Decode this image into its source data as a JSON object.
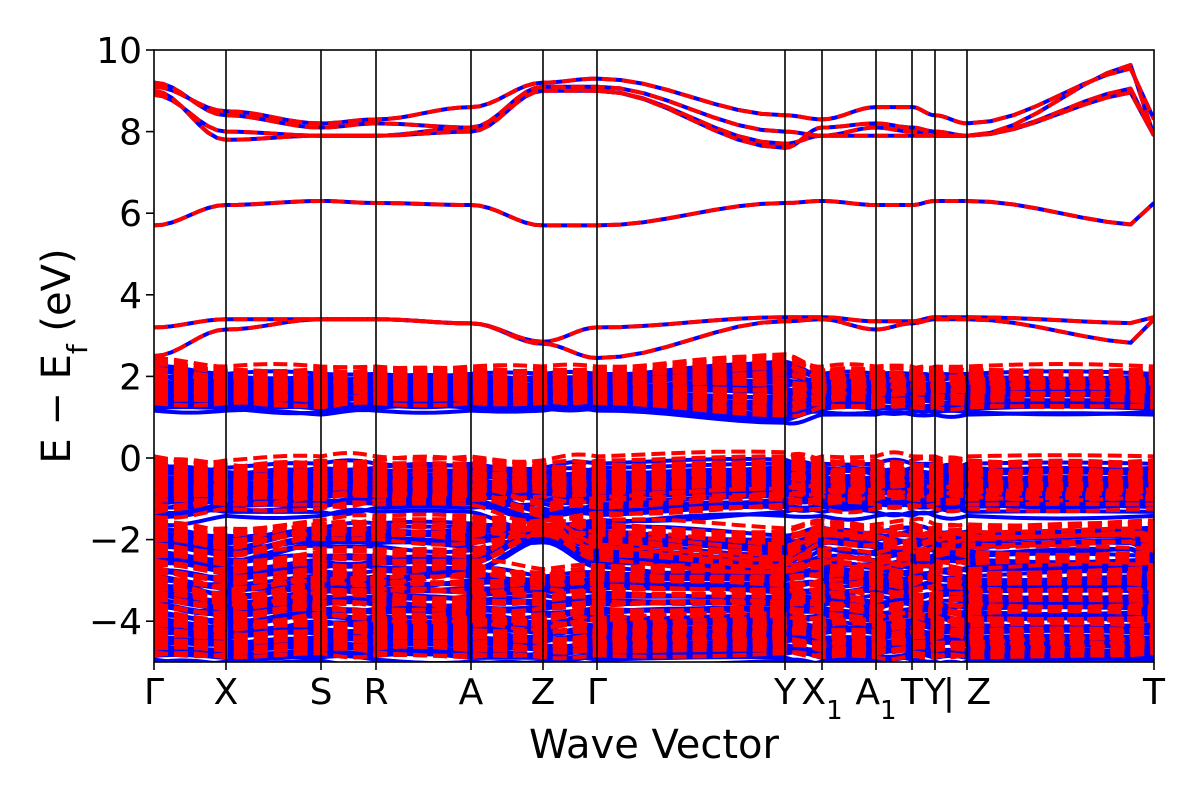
{
  "chart_data": {
    "type": "line",
    "title": "",
    "xlabel": "Wave Vector",
    "ylabel": "E − E_f (eV)",
    "ylabel_parts": {
      "main": "E − E",
      "sub": "f",
      "unit": " (eV)"
    },
    "ylim": [
      -5,
      10
    ],
    "y_ticks": [
      -4,
      -2,
      0,
      2,
      4,
      6,
      8,
      10
    ],
    "y_tick_labels": [
      "−4",
      "−2",
      "0",
      "2",
      "4",
      "6",
      "8",
      "10"
    ],
    "k_path": [
      {
        "pos": 0.0,
        "label": "Γ",
        "sub": ""
      },
      {
        "pos": 0.072,
        "label": "X",
        "sub": ""
      },
      {
        "pos": 0.167,
        "label": "S",
        "sub": ""
      },
      {
        "pos": 0.222,
        "label": "R",
        "sub": ""
      },
      {
        "pos": 0.317,
        "label": "A",
        "sub": ""
      },
      {
        "pos": 0.389,
        "label": "Z",
        "sub": ""
      },
      {
        "pos": 0.443,
        "label": "Γ",
        "sub": ""
      },
      {
        "pos": 0.631,
        "label": "Y",
        "sub": ""
      },
      {
        "pos": 0.668,
        "label": "X",
        "sub": "1"
      },
      {
        "pos": 0.722,
        "label": "A",
        "sub": "1"
      },
      {
        "pos": 0.758,
        "label": "T",
        "sub": ""
      },
      {
        "pos": 0.781,
        "label": "Y",
        "sub": ""
      },
      {
        "pos": 0.813,
        "label": "| Z",
        "sub": ""
      },
      {
        "pos": 1.0,
        "label": "T",
        "sub": ""
      }
    ],
    "series": [
      {
        "name": "Blue (solid)",
        "color": "#0000ff",
        "dash": "solid"
      },
      {
        "name": "Red (dashed)",
        "color": "#ff0000",
        "dash": "dashed"
      }
    ],
    "bands": [
      {
        "y": [
          9.1,
          8.5,
          8.2,
          8.3,
          8.6,
          9.2,
          9.3,
          8.4,
          8.3,
          8.6,
          8.6,
          8.4,
          8.2,
          9.6,
          8.3
        ],
        "h": 0
      },
      {
        "y": [
          9.2,
          8.4,
          8.1,
          8.2,
          8.1,
          9.1,
          9.0,
          7.6,
          8.1,
          8.2,
          8.1,
          8.0,
          7.9,
          9.7,
          7.9
        ],
        "h": 0
      },
      {
        "y": [
          8.9,
          8.0,
          7.9,
          7.9,
          8.1,
          9.1,
          9.1,
          8.0,
          7.9,
          8.1,
          8.0,
          7.9,
          7.9,
          9.0,
          7.9
        ],
        "h": 0
      },
      {
        "y": [
          9.0,
          7.8,
          7.9,
          7.9,
          8.0,
          9.0,
          9.0,
          7.7,
          7.9,
          7.9,
          7.9,
          7.9,
          7.9,
          9.1,
          7.9
        ],
        "h": 0
      },
      {
        "y": [
          5.7,
          6.2,
          6.3,
          6.25,
          6.2,
          5.7,
          5.7,
          6.25,
          6.3,
          6.2,
          6.2,
          6.3,
          6.3,
          5.7,
          6.25
        ],
        "h": 0
      },
      {
        "y": [
          3.2,
          3.4,
          3.4,
          3.4,
          3.3,
          2.85,
          3.2,
          3.45,
          3.45,
          3.35,
          3.35,
          3.45,
          3.45,
          3.3,
          3.45
        ],
        "h": 0
      },
      {
        "y": [
          2.5,
          3.15,
          3.4,
          3.4,
          3.3,
          2.8,
          2.45,
          3.35,
          3.4,
          3.15,
          3.3,
          3.4,
          3.4,
          2.8,
          3.4
        ],
        "h": 0
      },
      {
        "y": [
          2.1,
          1.9,
          1.9,
          1.9,
          1.9,
          1.9,
          1.9,
          2.2,
          1.9,
          1.9,
          1.9,
          1.9,
          1.9,
          1.9,
          1.9
        ],
        "h": 0.25
      },
      {
        "y": [
          1.8,
          1.8,
          1.7,
          1.8,
          1.8,
          1.7,
          1.8,
          2.0,
          1.8,
          1.8,
          1.7,
          1.7,
          1.8,
          1.7,
          1.8
        ],
        "h": 0.25
      },
      {
        "y": [
          1.6,
          1.6,
          1.5,
          1.6,
          1.6,
          1.5,
          1.6,
          1.6,
          1.6,
          1.6,
          1.6,
          1.6,
          1.6,
          1.6,
          1.6
        ],
        "h": 0.25
      },
      {
        "y": [
          1.5,
          1.4,
          1.4,
          1.4,
          1.5,
          1.4,
          1.4,
          1.3,
          1.5,
          1.5,
          1.5,
          1.5,
          1.5,
          1.5,
          1.5
        ],
        "h": 0.25
      },
      {
        "y": [
          1.3,
          1.3,
          1.2,
          1.3,
          1.3,
          1.3,
          1.3,
          1.0,
          1.2,
          1.2,
          1.2,
          1.2,
          1.2,
          1.2,
          1.2
        ],
        "h": 0.25
      },
      {
        "y": [
          -0.4,
          -0.5,
          -0.4,
          -0.4,
          -0.4,
          -0.5,
          -0.4,
          -0.3,
          -0.4,
          -0.4,
          -0.4,
          -0.4,
          -0.4,
          -0.4,
          -0.4
        ],
        "h": 0.4
      },
      {
        "y": [
          -0.6,
          -0.7,
          -0.6,
          -0.6,
          -0.7,
          -0.6,
          -0.6,
          -0.5,
          -0.6,
          -0.6,
          -0.6,
          -0.6,
          -0.6,
          -0.6,
          -0.6
        ],
        "h": 0.4
      },
      {
        "y": [
          -0.8,
          -0.8,
          -0.8,
          -0.7,
          -0.8,
          -0.8,
          -0.8,
          -0.7,
          -0.8,
          -0.8,
          -0.8,
          -0.8,
          -0.8,
          -0.8,
          -0.8
        ],
        "h": 0.4
      },
      {
        "y": [
          -1.0,
          -1.0,
          -0.9,
          -0.9,
          -0.9,
          -0.9,
          -1.0,
          -0.9,
          -0.9,
          -0.9,
          -0.9,
          -0.9,
          -0.9,
          -0.9,
          -0.9
        ],
        "h": 0.4
      },
      {
        "y": [
          -1.4,
          -1.2,
          -1.2,
          -1.1,
          -1.1,
          -1.5,
          -1.4,
          -1.2,
          -1.2,
          -1.2,
          -1.2,
          -1.2,
          -1.2,
          -1.2,
          -1.2
        ],
        "h": 0.4
      },
      {
        "y": [
          -1.9,
          -2.1,
          -1.9,
          -1.8,
          -1.8,
          -1.9,
          -1.9,
          -2.1,
          -1.9,
          -2.0,
          -1.9,
          -2.0,
          -2.0,
          -1.9,
          -1.9
        ],
        "h": 0.3
      },
      {
        "y": [
          -2.2,
          -2.4,
          -2.0,
          -2.0,
          -2.1,
          -1.9,
          -2.2,
          -2.5,
          -2.1,
          -2.2,
          -2.3,
          -2.2,
          -2.2,
          -2.1,
          -2.3
        ],
        "h": 0.3
      },
      {
        "y": [
          -2.6,
          -2.8,
          -2.6,
          -2.6,
          -2.6,
          -1.9,
          -2.5,
          -2.8,
          -2.6,
          -2.7,
          -2.6,
          -2.6,
          -2.6,
          -2.6,
          -2.6
        ],
        "h": 0.3
      },
      {
        "y": [
          -3.0,
          -3.2,
          -3.0,
          -3.1,
          -2.9,
          -3.1,
          -3.0,
          -3.0,
          -2.9,
          -2.9,
          -3.0,
          -3.0,
          -3.1,
          -3.0,
          -3.0
        ],
        "h": 0.3
      },
      {
        "y": [
          -3.2,
          -3.6,
          -3.3,
          -3.3,
          -3.3,
          -3.2,
          -3.2,
          -3.3,
          -3.3,
          -3.2,
          -3.3,
          -3.2,
          -3.2,
          -3.2,
          -3.2
        ],
        "h": 0.3
      },
      {
        "y": [
          -3.6,
          -3.8,
          -3.6,
          -3.6,
          -3.7,
          -3.7,
          -3.6,
          -3.6,
          -3.5,
          -3.7,
          -3.6,
          -3.6,
          -3.6,
          -3.6,
          -3.6
        ],
        "h": 0.3
      },
      {
        "y": [
          -4.0,
          -4.2,
          -3.9,
          -4.0,
          -4.0,
          -4.2,
          -4.0,
          -3.9,
          -3.9,
          -4.0,
          -3.9,
          -3.9,
          -4.0,
          -4.0,
          -4.0
        ],
        "h": 0.3
      },
      {
        "y": [
          -4.3,
          -4.4,
          -4.3,
          -4.3,
          -4.3,
          -4.3,
          -4.3,
          -4.2,
          -4.3,
          -4.3,
          -4.2,
          -4.3,
          -4.3,
          -4.3,
          -4.3
        ],
        "h": 0.3
      },
      {
        "y": [
          -4.6,
          -4.6,
          -4.5,
          -4.6,
          -4.6,
          -4.7,
          -4.6,
          -4.5,
          -4.6,
          -4.6,
          -4.5,
          -4.6,
          -4.6,
          -4.6,
          -4.6
        ],
        "h": 0.3
      },
      {
        "y": [
          -4.85,
          -4.9,
          -4.8,
          -4.85,
          -4.9,
          -4.9,
          -4.85,
          -4.8,
          -4.9,
          -4.9,
          -4.85,
          -4.9,
          -4.9,
          -4.85,
          -4.8
        ],
        "h": 0.3
      }
    ]
  }
}
